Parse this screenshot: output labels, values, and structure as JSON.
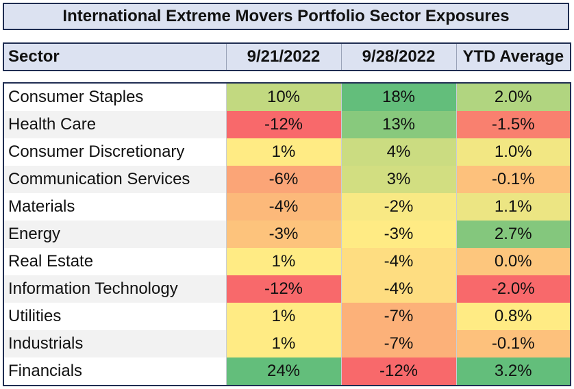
{
  "chart_data": {
    "type": "table",
    "title": "International Extreme Movers Portfolio Sector Exposures",
    "columns": [
      "Sector",
      "9/21/2022",
      "9/28/2022",
      "YTD Average"
    ],
    "rows": [
      {
        "sector": "Consumer Staples",
        "v1": "10%",
        "v2": "18%",
        "v3": "2.0%",
        "n1": 10,
        "n2": 18,
        "n3": 2.0
      },
      {
        "sector": "Health Care",
        "v1": "-12%",
        "v2": "13%",
        "v3": "-1.5%",
        "n1": -12,
        "n2": 13,
        "n3": -1.5
      },
      {
        "sector": "Consumer Discretionary",
        "v1": "1%",
        "v2": "4%",
        "v3": "1.0%",
        "n1": 1,
        "n2": 4,
        "n3": 1.0
      },
      {
        "sector": "Communication Services",
        "v1": "-6%",
        "v2": "3%",
        "v3": "-0.1%",
        "n1": -6,
        "n2": 3,
        "n3": -0.1
      },
      {
        "sector": "Materials",
        "v1": "-4%",
        "v2": "-2%",
        "v3": "1.1%",
        "n1": -4,
        "n2": -2,
        "n3": 1.1
      },
      {
        "sector": "Energy",
        "v1": "-3%",
        "v2": "-3%",
        "v3": "2.7%",
        "n1": -3,
        "n2": -3,
        "n3": 2.7
      },
      {
        "sector": "Real Estate",
        "v1": "1%",
        "v2": "-4%",
        "v3": "0.0%",
        "n1": 1,
        "n2": -4,
        "n3": 0.0
      },
      {
        "sector": "Information Technology",
        "v1": "-12%",
        "v2": "-4%",
        "v3": "-2.0%",
        "n1": -12,
        "n2": -4,
        "n3": -2.0
      },
      {
        "sector": "Utilities",
        "v1": "1%",
        "v2": "-7%",
        "v3": "0.8%",
        "n1": 1,
        "n2": -7,
        "n3": 0.8
      },
      {
        "sector": "Industrials",
        "v1": "1%",
        "v2": "-7%",
        "v3": "-0.1%",
        "n1": 1,
        "n2": -7,
        "n3": -0.1
      },
      {
        "sector": "Financials",
        "v1": "24%",
        "v2": "-12%",
        "v3": "3.2%",
        "n1": 24,
        "n2": -12,
        "n3": 3.2
      }
    ]
  },
  "colors": {
    "low": "#f8696b",
    "mid": "#ffeb84",
    "high": "#63be7b"
  }
}
